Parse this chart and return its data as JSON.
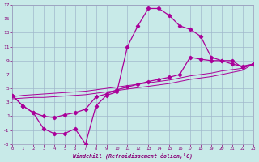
{
  "bg_color": "#c8eae8",
  "grid_color": "#a0b8cc",
  "line_color": "#aa0099",
  "xlabel": "Windchill (Refroidissement éolien,°C)",
  "hours": [
    0,
    1,
    2,
    3,
    4,
    5,
    6,
    7,
    8,
    9,
    10,
    11,
    12,
    13,
    14,
    15,
    16,
    17,
    18,
    19,
    20,
    21,
    22,
    23
  ],
  "curve1_y": [
    4.0,
    2.5,
    1.5,
    -0.8,
    -1.5,
    -1.5,
    -0.8,
    -3.0,
    2.5,
    4.0,
    4.5,
    11.0,
    14.0,
    16.5,
    16.5,
    15.5,
    14.0,
    13.5,
    12.5,
    9.5,
    9.0,
    9.0,
    8.0,
    8.5
  ],
  "curve2_y": [
    4.0,
    2.5,
    1.5,
    1.0,
    0.8,
    1.2,
    1.5,
    2.0,
    3.8,
    4.2,
    4.8,
    5.2,
    5.6,
    6.0,
    6.3,
    6.6,
    7.0,
    9.5,
    9.2,
    9.0,
    9.0,
    8.5,
    8.2,
    8.5
  ],
  "line1_y": [
    3.8,
    4.0,
    4.1,
    4.2,
    4.3,
    4.4,
    4.5,
    4.6,
    4.8,
    5.0,
    5.2,
    5.4,
    5.6,
    5.8,
    6.0,
    6.2,
    6.5,
    6.8,
    7.0,
    7.2,
    7.5,
    7.7,
    7.9,
    8.5
  ],
  "line2_y": [
    3.5,
    3.6,
    3.7,
    3.7,
    3.8,
    3.9,
    4.0,
    4.1,
    4.3,
    4.5,
    4.7,
    4.9,
    5.1,
    5.3,
    5.5,
    5.7,
    6.0,
    6.3,
    6.5,
    6.7,
    7.0,
    7.3,
    7.6,
    8.5
  ],
  "xlim": [
    0,
    23
  ],
  "ylim": [
    -3,
    17
  ],
  "xticks": [
    0,
    1,
    2,
    3,
    4,
    5,
    6,
    7,
    8,
    9,
    10,
    11,
    12,
    13,
    14,
    15,
    16,
    17,
    18,
    19,
    20,
    21,
    22,
    23
  ],
  "yticks": [
    -3,
    -1,
    1,
    3,
    5,
    7,
    9,
    11,
    13,
    15,
    17
  ]
}
